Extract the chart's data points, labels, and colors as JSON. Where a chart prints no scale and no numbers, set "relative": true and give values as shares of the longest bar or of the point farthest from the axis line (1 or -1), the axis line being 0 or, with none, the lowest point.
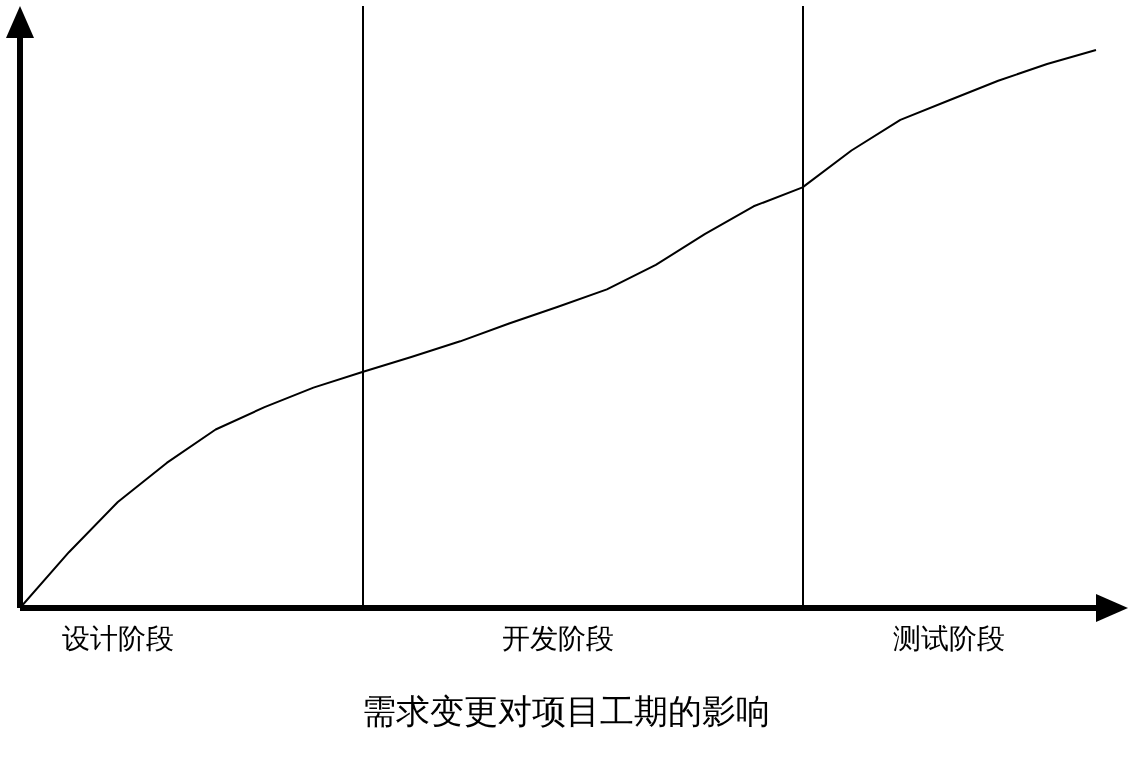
{
  "chart_data": {
    "type": "line",
    "title": "需求变更对项目工期的影响",
    "relative": true,
    "marker": "none",
    "categories": [
      null,
      null,
      "设计阶段",
      null,
      null,
      null,
      null,
      null,
      null,
      null,
      null,
      "开发阶段",
      null,
      null,
      null,
      null,
      null,
      null,
      null,
      "测试阶段",
      null,
      null,
      null
    ],
    "series": [
      {
        "color": "#000000",
        "values": [
          0,
          0.1,
          0.19,
          0.26,
          0.32,
          0.36,
          0.395,
          0.423,
          0.45,
          0.478,
          0.51,
          0.54,
          0.571,
          0.615,
          0.67,
          0.72,
          0.754,
          0.82,
          0.875,
          0.91,
          0.945,
          0.975,
          1
        ]
      }
    ]
  }
}
